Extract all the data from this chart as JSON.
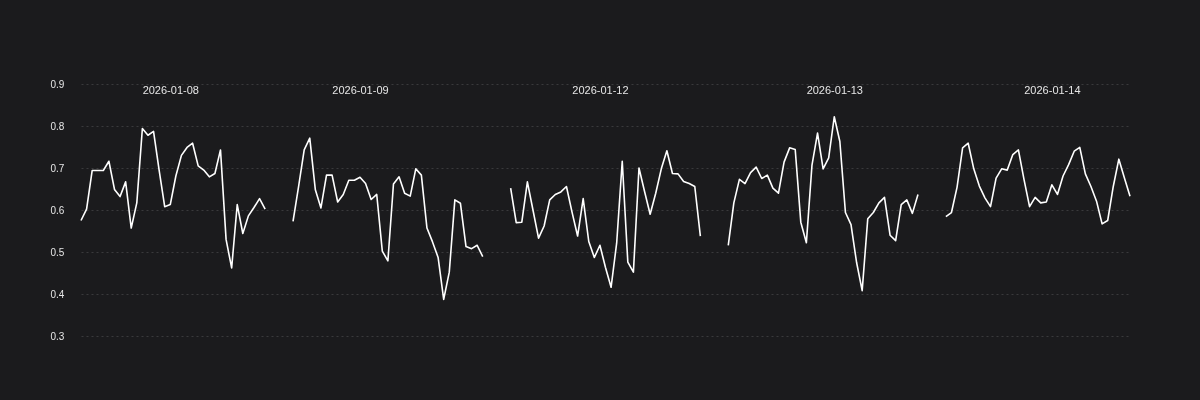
{
  "chart_data": {
    "type": "line",
    "categories": [
      null,
      null,
      null,
      null,
      null,
      null,
      null,
      null,
      null,
      null,
      null,
      null,
      null,
      null,
      null,
      null,
      "2026-01-08",
      null,
      null,
      null,
      null,
      null,
      null,
      null,
      null,
      null,
      null,
      null,
      null,
      null,
      null,
      null,
      null,
      null,
      null,
      null,
      null,
      null,
      null,
      null,
      null,
      null,
      null,
      null,
      null,
      null,
      null,
      null,
      null,
      null,
      "2026-01-09",
      null,
      null,
      null,
      null,
      null,
      null,
      null,
      null,
      null,
      null,
      null,
      null,
      null,
      null,
      null,
      null,
      null,
      null,
      null,
      null,
      null,
      null,
      null,
      null,
      null,
      null,
      null,
      null,
      null,
      null,
      null,
      null,
      null,
      null,
      null,
      null,
      null,
      null,
      null,
      null,
      null,
      null,
      "2026-01-12",
      null,
      null,
      null,
      null,
      null,
      null,
      null,
      null,
      null,
      null,
      null,
      null,
      null,
      null,
      null,
      null,
      null,
      null,
      null,
      null,
      null,
      null,
      null,
      null,
      null,
      null,
      null,
      null,
      null,
      null,
      null,
      null,
      null,
      null,
      null,
      null,
      null,
      null,
      null,
      null,
      null,
      "2026-01-13",
      null,
      null,
      null,
      null,
      null,
      null,
      null,
      null,
      null,
      null,
      null,
      null,
      null,
      null,
      null,
      null,
      null,
      null,
      null,
      null,
      null,
      null,
      null,
      null,
      null,
      null,
      null,
      null,
      null,
      null,
      null,
      null,
      null,
      null,
      null,
      null,
      null,
      null,
      "2026-01-14",
      null,
      null,
      null,
      null,
      null,
      null,
      null,
      null,
      null,
      null,
      null,
      null,
      null,
      null
    ],
    "series": [
      {
        "color": "#ffffff",
        "values": [
          0.575,
          0.602,
          0.694,
          0.694,
          0.694,
          0.716,
          0.649,
          0.632,
          0.667,
          0.557,
          0.617,
          0.794,
          0.778,
          0.787,
          0.695,
          0.608,
          0.613,
          0.681,
          0.73,
          0.749,
          0.759,
          0.705,
          0.695,
          0.679,
          0.687,
          0.743,
          0.53,
          0.462,
          0.613,
          0.544,
          0.586,
          0.606,
          0.627,
          0.602,
          null,
          null,
          null,
          null,
          0.573,
          0.656,
          0.743,
          0.771,
          0.648,
          0.605,
          0.683,
          0.683,
          0.619,
          0.637,
          0.671,
          0.671,
          0.678,
          0.663,
          0.625,
          0.637,
          0.502,
          0.479,
          0.662,
          0.679,
          0.64,
          0.633,
          0.698,
          0.683,
          0.557,
          0.524,
          0.487,
          0.387,
          0.452,
          0.624,
          0.616,
          0.513,
          0.508,
          0.516,
          0.489,
          null,
          null,
          null,
          null,
          0.652,
          0.57,
          0.571,
          0.667,
          0.6,
          0.533,
          0.562,
          0.624,
          0.637,
          0.643,
          0.656,
          0.595,
          0.538,
          0.627,
          0.525,
          0.487,
          0.516,
          0.463,
          0.416,
          0.521,
          0.716,
          0.476,
          0.452,
          0.7,
          0.644,
          0.59,
          0.64,
          0.698,
          0.741,
          0.687,
          0.686,
          0.668,
          0.663,
          0.656,
          0.538,
          null,
          null,
          null,
          null,
          0.516,
          0.617,
          0.673,
          0.663,
          0.689,
          0.702,
          0.675,
          0.683,
          0.652,
          0.64,
          0.714,
          0.748,
          0.744,
          0.571,
          0.522,
          0.706,
          0.783,
          0.698,
          0.724,
          0.822,
          0.763,
          0.594,
          0.565,
          0.475,
          0.408,
          0.579,
          0.594,
          0.617,
          0.63,
          0.54,
          0.527,
          0.613,
          0.624,
          0.592,
          0.637,
          null,
          null,
          null,
          null,
          0.584,
          0.594,
          0.654,
          0.748,
          0.759,
          0.698,
          0.657,
          0.629,
          0.608,
          0.676,
          0.698,
          0.695,
          0.732,
          0.743,
          0.673,
          0.608,
          0.63,
          0.617,
          0.619,
          0.66,
          0.637,
          0.681,
          0.708,
          0.74,
          0.749,
          0.686,
          0.656,
          0.621,
          0.567,
          0.575,
          0.656,
          0.721,
          0.676,
          0.633
        ]
      }
    ],
    "ylim": [
      0.3,
      0.9
    ],
    "yticks": [
      0.3,
      0.4,
      0.5,
      0.6,
      0.7,
      0.8,
      0.9
    ],
    "grid": "y"
  }
}
